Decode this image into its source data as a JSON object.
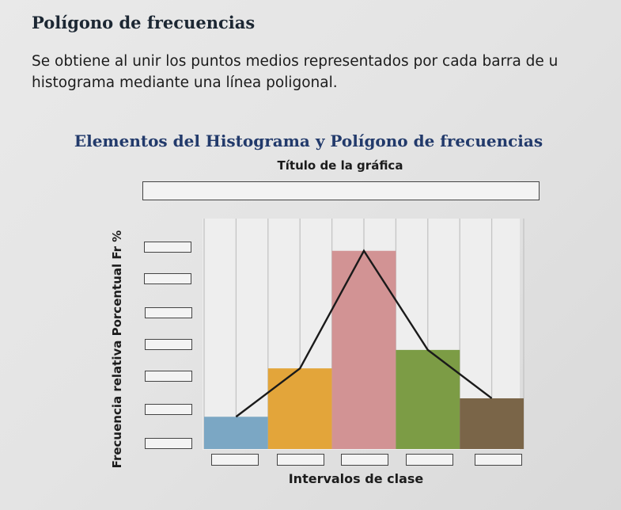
{
  "section": {
    "heading": "Polígono de frecuencias",
    "paragraph": "Se obtiene al unir los puntos medios representados por cada barra de u histograma mediante una línea poligonal."
  },
  "chart_data": {
    "type": "bar",
    "title": "Elementos del Histograma y Polígono de frecuencias",
    "subtitle": "Título de la gráfica",
    "xlabel": "Intervalos de clase",
    "ylabel": "Frecuencia relativa Porcentual Fr %",
    "categories": [
      "",
      "",
      "",
      "",
      ""
    ],
    "values": [
      14,
      35,
      86,
      43,
      22
    ],
    "bar_colors": [
      "#7ba7c4",
      "#e3a53a",
      "#d29394",
      "#7c9c45",
      "#7a6548"
    ],
    "polygon": {
      "name": "",
      "values": [
        14,
        35,
        86,
        43,
        22
      ],
      "color": "#1a1a1a"
    },
    "ylim": [
      0,
      100
    ],
    "grid": true,
    "legend": "none",
    "y_tick_label_boxes": 7,
    "x_tick_label_boxes": 5
  }
}
